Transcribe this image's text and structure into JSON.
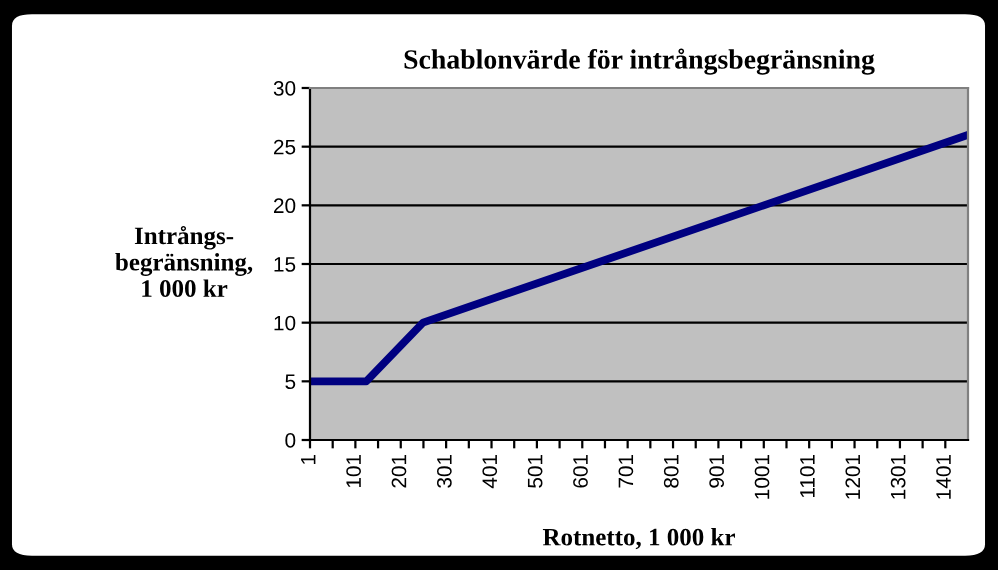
{
  "chart_data": {
    "type": "line",
    "title": "Schablonvärde för intrångsbegränsning",
    "xlabel": "Rotnetto, 1 000 kr",
    "ylabel": "Intrångs-\nbegränsning,\n1 000 kr",
    "x": [
      1,
      125,
      250,
      1001,
      1451
    ],
    "series": [
      {
        "color": "#000080",
        "values": [
          5,
          5,
          10,
          20,
          26
        ]
      }
    ],
    "xlim": [
      1,
      1451
    ],
    "ylim": [
      0,
      30
    ],
    "xticks": [
      1,
      {
        "value": 51,
        "label": null
      },
      101,
      {
        "value": 151,
        "label": null
      },
      201,
      {
        "value": 251,
        "label": null
      },
      301,
      {
        "value": 351,
        "label": null
      },
      401,
      {
        "value": 451,
        "label": null
      },
      501,
      {
        "value": 551,
        "label": null
      },
      601,
      {
        "value": 651,
        "label": null
      },
      701,
      {
        "value": 751,
        "label": null
      },
      801,
      {
        "value": 851,
        "label": null
      },
      901,
      {
        "value": 951,
        "label": null
      },
      1001,
      {
        "value": 1051,
        "label": null
      },
      1101,
      {
        "value": 1151,
        "label": null
      },
      1201,
      {
        "value": 1251,
        "label": null
      },
      1301,
      {
        "value": 1351,
        "label": null
      },
      1401
    ],
    "yticks": [
      0,
      5,
      10,
      15,
      20,
      25,
      30
    ],
    "grid": "y",
    "legend": false,
    "marker": "none",
    "line_style": "solid"
  }
}
